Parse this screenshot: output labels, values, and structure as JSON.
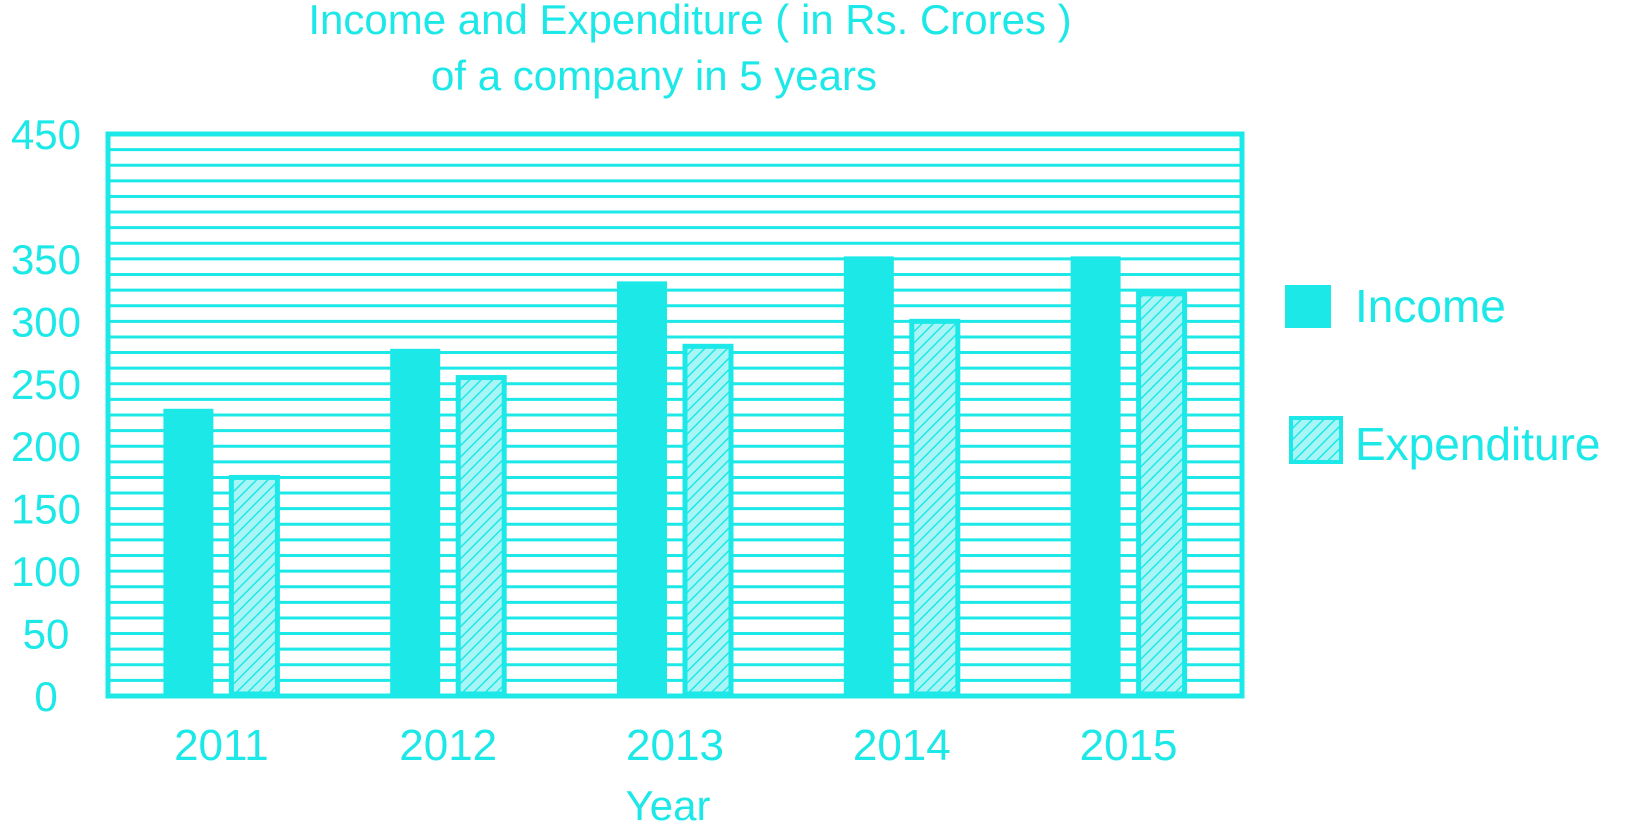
{
  "colors": {
    "accent": "#1ce8e8",
    "expenditure_fill": "#a9f5f5",
    "background": "#ffffff"
  },
  "chart_data": {
    "type": "bar",
    "title": "Income and Expenditure ( in Rs. Crores )",
    "subtitle": "of a company in 5 years",
    "xlabel": "Year",
    "ylabel": "",
    "categories": [
      "2011",
      "2012",
      "2013",
      "2014",
      "2015"
    ],
    "series": [
      {
        "name": "Income",
        "values": [
          230,
          278,
          332,
          352,
          352
        ]
      },
      {
        "name": "Expenditure",
        "values": [
          175,
          255,
          280,
          300,
          322
        ]
      }
    ],
    "ylim": [
      0,
      450
    ],
    "yticks": [
      "450",
      "350",
      "300",
      "250",
      "200",
      "150",
      "100",
      "50",
      "0"
    ],
    "ytick_values": [
      450,
      350,
      300,
      250,
      200,
      150,
      100,
      50,
      0
    ],
    "grid": true,
    "legend": {
      "position": "right"
    }
  }
}
